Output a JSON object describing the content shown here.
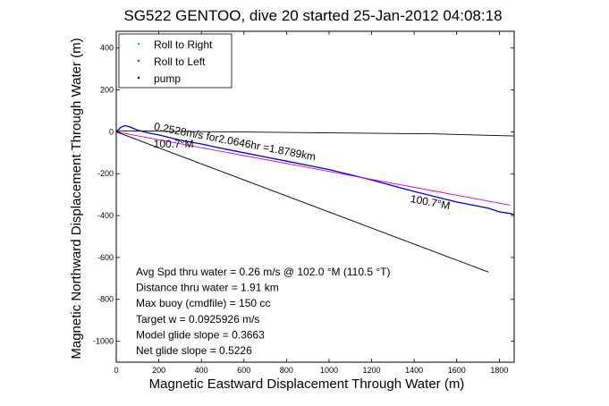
{
  "chart_data": {
    "type": "line",
    "title": "SG522 GENTOO, dive 20 started 25-Jan-2012 04:08:18",
    "xlabel": "Magnetic Eastward Displacement Through Water (m)",
    "ylabel": "Magnetic Northward Displacement Through Water (m)",
    "xlim": [
      0,
      1870
    ],
    "ylim": [
      -1100,
      480
    ],
    "xticks": [
      0,
      200,
      400,
      600,
      800,
      1000,
      1200,
      1400,
      1600,
      1800
    ],
    "yticks": [
      400,
      200,
      0,
      -200,
      -400,
      -600,
      -800,
      -1000
    ],
    "grid": false,
    "legend": {
      "placement": "top-left",
      "entries": [
        {
          "label": "Roll to Right",
          "color": "#00cc00",
          "marker": "."
        },
        {
          "label": "Roll to Left",
          "color": "#ff0000",
          "marker": "."
        },
        {
          "label": "pump",
          "color": "#000000",
          "marker": "."
        }
      ]
    },
    "series": [
      {
        "name": "track",
        "color": "#0000cc",
        "points": [
          [
            0,
            0
          ],
          [
            20,
            20
          ],
          [
            40,
            30
          ],
          [
            60,
            25
          ],
          [
            100,
            8
          ],
          [
            150,
            -5
          ],
          [
            200,
            -15
          ],
          [
            300,
            -40
          ],
          [
            400,
            -58
          ],
          [
            500,
            -80
          ],
          [
            600,
            -100
          ],
          [
            700,
            -120
          ],
          [
            800,
            -140
          ],
          [
            900,
            -160
          ],
          [
            1000,
            -180
          ],
          [
            1100,
            -205
          ],
          [
            1200,
            -230
          ],
          [
            1300,
            -258
          ],
          [
            1400,
            -285
          ],
          [
            1500,
            -310
          ],
          [
            1600,
            -335
          ],
          [
            1700,
            -355
          ],
          [
            1750,
            -365
          ],
          [
            1800,
            -382
          ],
          [
            1850,
            -390
          ],
          [
            1870,
            -395
          ]
        ]
      },
      {
        "color": "#cc00cc",
        "points": [
          [
            0,
            0
          ],
          [
            1850,
            -350
          ]
        ]
      },
      {
        "color": "#000000",
        "points": [
          [
            0,
            0
          ],
          [
            1750,
            -670
          ]
        ]
      },
      {
        "color": "#000000",
        "points": [
          [
            0,
            5
          ],
          [
            500,
            0
          ],
          [
            1000,
            -5
          ],
          [
            1500,
            -10
          ],
          [
            1870,
            -20
          ]
        ]
      }
    ],
    "annotations": [
      {
        "text": "0.2528m/s for2.0646hr =1.8789km",
        "x": 175,
        "y": 10,
        "angle": 10.8
      },
      {
        "text": "100.7°M",
        "x": 175,
        "y": -75,
        "angle": 0
      },
      {
        "text": "100.7°M",
        "x": 1380,
        "y": -335,
        "angle": 10.8
      }
    ],
    "stats_lines": [
      "Avg Spd thru water =  0.26 m/s @ 102.0    °M (110.5 °T)",
      "Distance thru water =  1.91 km",
      "Max buoy (cmdfile) = 150 cc",
      "Target w = 0.0925926 m/s",
      "Model glide slope = 0.3663",
      "Net glide slope = 0.5226"
    ]
  }
}
